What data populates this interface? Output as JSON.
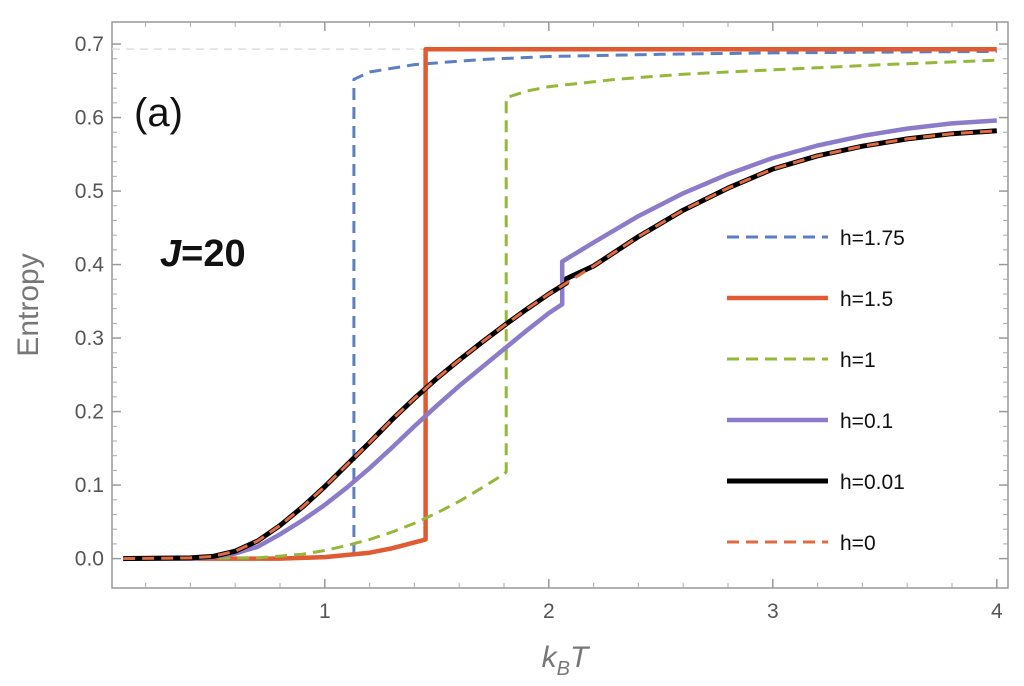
{
  "chart_data": {
    "type": "line",
    "title": "",
    "panel_label": "(a)",
    "parameter_label": {
      "var": "J",
      "eq": "=20"
    },
    "xlabel": {
      "main": "k",
      "sub": "B",
      "var": "T"
    },
    "ylabel": "Entropy",
    "xlim": [
      0.05,
      4.05
    ],
    "ylim": [
      -0.04,
      0.73
    ],
    "xticks": [
      1,
      2,
      3,
      4
    ],
    "xtick_labels": [
      "1",
      "2",
      "3",
      "4"
    ],
    "yticks": [
      0.0,
      0.1,
      0.2,
      0.3,
      0.4,
      0.5,
      0.6,
      0.7
    ],
    "ytick_labels": [
      "0.0",
      "0.1",
      "0.2",
      "0.3",
      "0.4",
      "0.5",
      "0.6",
      "0.7"
    ],
    "reference_line": 0.6931,
    "legend_position": "center-right",
    "series": [
      {
        "name": "h=1.75",
        "color": "#5B7FC2",
        "dash": true,
        "width": 3,
        "x": [
          0.1,
          0.6,
          0.9,
          1.05,
          1.12,
          1.13,
          1.13,
          1.2,
          1.4,
          1.7,
          2.0,
          2.5,
          3.0,
          3.5,
          4.0
        ],
        "y": [
          0.0,
          0.0,
          0.001,
          0.003,
          0.006,
          0.008,
          0.652,
          0.662,
          0.672,
          0.679,
          0.683,
          0.686,
          0.688,
          0.689,
          0.69
        ]
      },
      {
        "name": "h=1.5",
        "color": "#E05A32",
        "dash": false,
        "width": 4.5,
        "x": [
          0.1,
          0.8,
          1.0,
          1.2,
          1.3,
          1.4,
          1.45,
          1.45,
          2.0,
          3.0,
          4.0
        ],
        "y": [
          0.0,
          0.0,
          0.002,
          0.008,
          0.014,
          0.022,
          0.026,
          0.693,
          0.693,
          0.693,
          0.693
        ]
      },
      {
        "name": "h=1",
        "color": "#95B73A",
        "dash": true,
        "width": 3,
        "x": [
          0.1,
          0.7,
          0.9,
          1.0,
          1.1,
          1.2,
          1.3,
          1.4,
          1.5,
          1.6,
          1.7,
          1.8,
          1.81,
          1.81,
          1.9,
          2.0,
          2.3,
          2.6,
          3.0,
          3.5,
          4.0
        ],
        "y": [
          0.0,
          0.001,
          0.006,
          0.011,
          0.018,
          0.026,
          0.036,
          0.048,
          0.062,
          0.078,
          0.096,
          0.115,
          0.118,
          0.627,
          0.636,
          0.642,
          0.652,
          0.659,
          0.665,
          0.672,
          0.678
        ]
      },
      {
        "name": "h=0.1",
        "color": "#8B7BC8",
        "dash": false,
        "width": 4.5,
        "x": [
          0.1,
          0.4,
          0.5,
          0.6,
          0.7,
          0.8,
          0.9,
          1.0,
          1.1,
          1.2,
          1.3,
          1.4,
          1.5,
          1.6,
          1.7,
          1.8,
          1.9,
          2.0,
          2.06,
          2.06,
          2.2,
          2.4,
          2.6,
          2.8,
          3.0,
          3.2,
          3.4,
          3.6,
          3.8,
          4.0
        ],
        "y": [
          0.0,
          0.0,
          0.002,
          0.007,
          0.016,
          0.033,
          0.052,
          0.073,
          0.097,
          0.123,
          0.151,
          0.18,
          0.208,
          0.235,
          0.26,
          0.285,
          0.31,
          0.334,
          0.346,
          0.404,
          0.43,
          0.466,
          0.497,
          0.523,
          0.545,
          0.562,
          0.575,
          0.585,
          0.592,
          0.596
        ]
      },
      {
        "name": "h=0.01",
        "color": "#000000",
        "dash": false,
        "width": 5,
        "x": [
          0.1,
          0.4,
          0.5,
          0.6,
          0.7,
          0.8,
          0.9,
          1.0,
          1.1,
          1.2,
          1.3,
          1.4,
          1.5,
          1.6,
          1.7,
          1.8,
          1.9,
          2.0,
          2.08,
          2.08,
          2.2,
          2.4,
          2.6,
          2.8,
          3.0,
          3.2,
          3.4,
          3.6,
          3.8,
          4.0
        ],
        "y": [
          0.0,
          0.001,
          0.003,
          0.01,
          0.024,
          0.045,
          0.07,
          0.098,
          0.128,
          0.158,
          0.189,
          0.218,
          0.245,
          0.27,
          0.294,
          0.317,
          0.339,
          0.36,
          0.375,
          0.381,
          0.398,
          0.438,
          0.474,
          0.504,
          0.53,
          0.548,
          0.561,
          0.571,
          0.578,
          0.582
        ]
      },
      {
        "name": "h=0",
        "color": "#E06A42",
        "dash": true,
        "width": 3,
        "x": [
          0.1,
          0.4,
          0.5,
          0.6,
          0.7,
          0.8,
          0.9,
          1.0,
          1.1,
          1.2,
          1.3,
          1.4,
          1.5,
          1.6,
          1.7,
          1.8,
          1.9,
          2.0,
          2.2,
          2.4,
          2.6,
          2.8,
          3.0,
          3.2,
          3.4,
          3.6,
          3.8,
          4.0
        ],
        "y": [
          0.0,
          0.001,
          0.003,
          0.01,
          0.024,
          0.045,
          0.07,
          0.098,
          0.128,
          0.158,
          0.189,
          0.218,
          0.245,
          0.27,
          0.294,
          0.317,
          0.339,
          0.36,
          0.398,
          0.438,
          0.474,
          0.504,
          0.53,
          0.548,
          0.561,
          0.571,
          0.578,
          0.582
        ]
      }
    ]
  }
}
